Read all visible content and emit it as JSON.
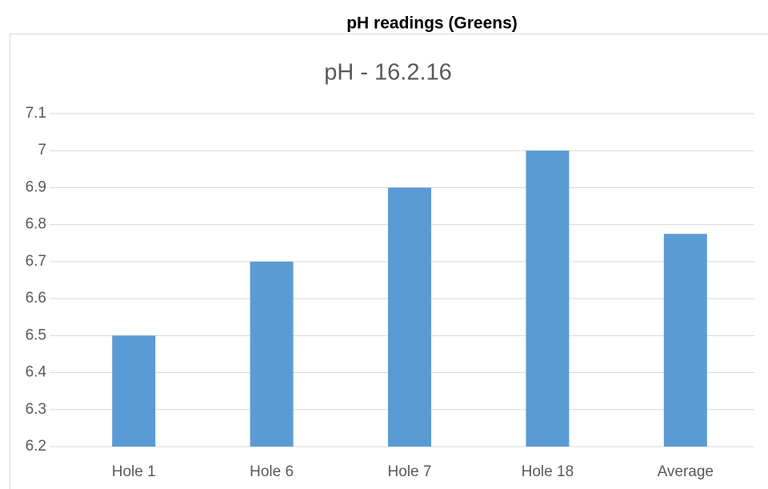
{
  "heading": "pH readings (Greens)",
  "chart_data": {
    "type": "bar",
    "title": "pH - 16.2.16",
    "categories": [
      "Hole 1",
      "Hole 6",
      "Hole 7",
      "Hole 18",
      "Average"
    ],
    "values": [
      6.5,
      6.7,
      6.9,
      7,
      6.775
    ],
    "color": "#5b9bd5",
    "ylim": [
      6.2,
      7.1
    ],
    "yticks": [
      6.2,
      6.3,
      6.4,
      6.5,
      6.6,
      6.7,
      6.8,
      6.9,
      7,
      7.1
    ],
    "grid": true
  }
}
